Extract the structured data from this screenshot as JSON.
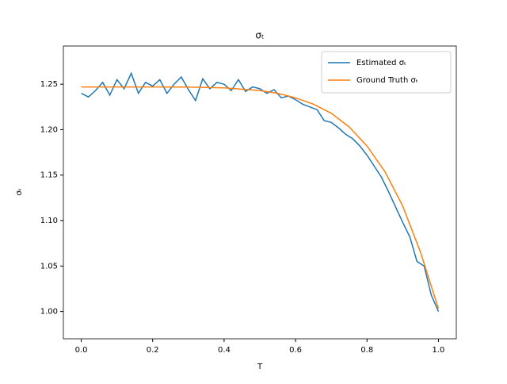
{
  "chart_data": {
    "type": "line",
    "title": "σₜ",
    "x_label": "T",
    "y_label": "σₜ",
    "xlim": [
      -0.05,
      1.05
    ],
    "ylim": [
      0.97,
      1.292
    ],
    "xticks": [
      {
        "value": 0,
        "label": "0.0"
      },
      0.2,
      0.4,
      0.6,
      0.8,
      {
        "value": 1,
        "label": "1.0"
      }
    ],
    "yticks": [
      {
        "value": 1,
        "label": "1.00"
      },
      1.05,
      {
        "value": 1.1,
        "label": "1.10"
      },
      1.15,
      {
        "value": 1.2,
        "label": "1.20"
      },
      1.25
    ],
    "legend": "upper right",
    "grid": false,
    "series": [
      {
        "name": "Estimated σₜ",
        "color": "#1f77b4",
        "x": [
          0,
          0.02,
          0.04,
          0.06,
          0.08,
          0.1,
          0.12,
          0.14,
          0.16,
          0.18,
          0.2,
          0.22,
          0.24,
          0.26,
          0.28,
          0.3,
          0.32,
          0.34,
          0.36,
          0.38,
          0.4,
          0.42,
          0.44,
          0.46,
          0.48,
          0.5,
          0.52,
          0.54,
          0.56,
          0.58,
          0.6,
          0.62,
          0.64,
          0.66,
          0.68,
          0.7,
          0.72,
          0.74,
          0.76,
          0.78,
          0.8,
          0.82,
          0.84,
          0.86,
          0.88,
          0.9,
          0.92,
          0.94,
          0.96,
          0.98,
          1
        ],
        "values": [
          1.24,
          1.236,
          1.243,
          1.252,
          1.238,
          1.255,
          1.245,
          1.262,
          1.24,
          1.252,
          1.248,
          1.255,
          1.24,
          1.25,
          1.258,
          1.244,
          1.232,
          1.256,
          1.245,
          1.252,
          1.25,
          1.243,
          1.255,
          1.242,
          1.247,
          1.245,
          1.24,
          1.244,
          1.235,
          1.237,
          1.233,
          1.228,
          1.225,
          1.222,
          1.21,
          1.208,
          1.202,
          1.195,
          1.19,
          1.182,
          1.172,
          1.16,
          1.148,
          1.132,
          1.115,
          1.098,
          1.082,
          1.055,
          1.05,
          1.018,
          1.0
        ]
      },
      {
        "name": "Ground Truth σₜ",
        "color": "#ff7f0e",
        "x": [
          0,
          0.1,
          0.2,
          0.3,
          0.4,
          0.5,
          0.55,
          0.6,
          0.65,
          0.7,
          0.75,
          0.8,
          0.85,
          0.9,
          0.95,
          1
        ],
        "values": [
          1.247,
          1.247,
          1.247,
          1.2468,
          1.246,
          1.243,
          1.24,
          1.235,
          1.228,
          1.218,
          1.203,
          1.182,
          1.154,
          1.116,
          1.065,
          1.003
        ]
      }
    ]
  }
}
